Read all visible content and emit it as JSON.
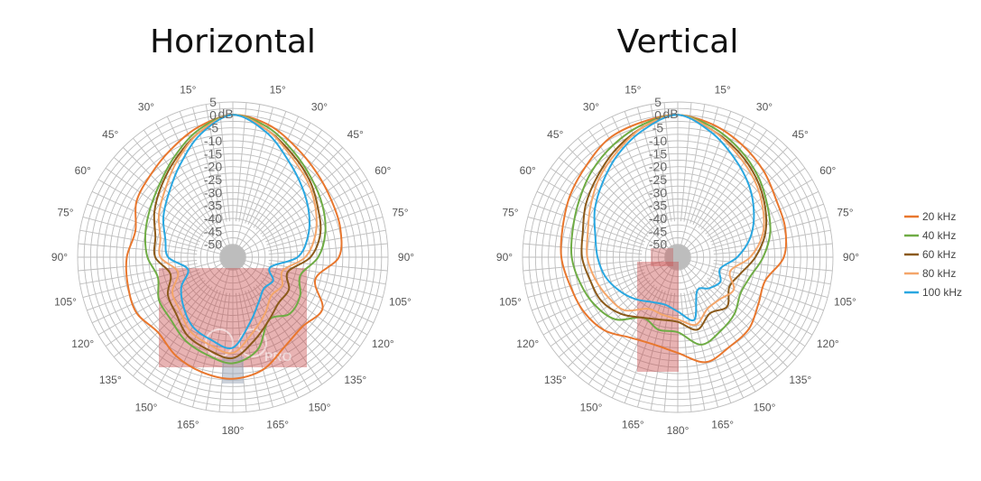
{
  "chart_data": [
    {
      "type": "polar-line",
      "title": "Horizontal",
      "radial_unit": "dB",
      "radial_ticks": [
        5,
        0,
        -5,
        -10,
        -15,
        -20,
        -25,
        -30,
        -35,
        -40,
        -45,
        -50
      ],
      "radial_range": [
        -55,
        5
      ],
      "angular_ticks": [
        "15°",
        "30°",
        "45°",
        "60°",
        "75°",
        "90°",
        "105°",
        "120°",
        "135°",
        "150°",
        "165°",
        "180°"
      ],
      "angles_deg": [
        0,
        15,
        30,
        45,
        60,
        75,
        90,
        105,
        120,
        135,
        150,
        165,
        180,
        195,
        210,
        225,
        240,
        255,
        270,
        285,
        300,
        315,
        330,
        345
      ],
      "series": [
        {
          "name": "20 kHz",
          "color": "#e8772e",
          "values": [
            0,
            -2,
            -6,
            -9,
            -11,
            -12,
            -14,
            -22,
            -15,
            -17,
            -15,
            -10,
            -8,
            -9,
            -11,
            -14,
            -12,
            -13,
            -14,
            -16,
            -12,
            -10,
            -7,
            -3
          ]
        },
        {
          "name": "40 kHz",
          "color": "#6fac45",
          "values": [
            0,
            -3,
            -8,
            -12,
            -15,
            -18,
            -22,
            -28,
            -25,
            -24,
            -27,
            -18,
            -14,
            -16,
            -18,
            -21,
            -22,
            -25,
            -22,
            -20,
            -18,
            -15,
            -10,
            -4
          ]
        },
        {
          "name": "60 kHz",
          "color": "#8b5a1a",
          "values": [
            0,
            -4,
            -9,
            -13,
            -17,
            -20,
            -25,
            -33,
            -30,
            -30,
            -27,
            -22,
            -16,
            -18,
            -20,
            -24,
            -26,
            -30,
            -25,
            -24,
            -20,
            -16,
            -11,
            -5
          ]
        },
        {
          "name": "80 kHz",
          "color": "#f4a66a",
          "values": [
            0,
            -4,
            -10,
            -14,
            -18,
            -22,
            -27,
            -35,
            -33,
            -34,
            -30,
            -25,
            -18,
            -20,
            -22,
            -26,
            -28,
            -33,
            -27,
            -26,
            -22,
            -18,
            -12,
            -5
          ]
        },
        {
          "name": "100 kHz",
          "color": "#2aa7e0",
          "values": [
            0,
            -5,
            -12,
            -17,
            -21,
            -25,
            -30,
            -40,
            -37,
            -38,
            -35,
            -29,
            -20,
            -22,
            -24,
            -28,
            -32,
            -37,
            -30,
            -28,
            -24,
            -20,
            -14,
            -6
          ]
        }
      ]
    },
    {
      "type": "polar-line",
      "title": "Vertical",
      "radial_unit": "dB",
      "radial_ticks": [
        5,
        0,
        -5,
        -10,
        -15,
        -20,
        -25,
        -30,
        -35,
        -40,
        -45,
        -50
      ],
      "radial_range": [
        -55,
        5
      ],
      "angular_ticks": [
        "15°",
        "30°",
        "45°",
        "60°",
        "75°",
        "90°",
        "105°",
        "120°",
        "135°",
        "150°",
        "165°",
        "180°"
      ],
      "angles_deg": [
        0,
        15,
        30,
        45,
        60,
        75,
        90,
        105,
        120,
        135,
        150,
        165,
        180,
        195,
        210,
        225,
        240,
        255,
        270,
        285,
        300,
        315,
        330,
        345
      ],
      "series": [
        {
          "name": "20 kHz",
          "color": "#e8772e",
          "values": [
            0,
            -2,
            -5,
            -8,
            -11,
            -12,
            -14,
            -20,
            -19,
            -16,
            -15,
            -13,
            -18,
            -20,
            -19,
            -15,
            -13,
            -12,
            -10,
            -9,
            -7,
            -5,
            -2,
            -1
          ]
        },
        {
          "name": "40 kHz",
          "color": "#6fac45",
          "values": [
            0,
            -3,
            -7,
            -11,
            -15,
            -18,
            -22,
            -26,
            -27,
            -24,
            -22,
            -20,
            -26,
            -26,
            -28,
            -21,
            -18,
            -16,
            -14,
            -13,
            -11,
            -8,
            -5,
            -2
          ]
        },
        {
          "name": "60 kHz",
          "color": "#8b5a1a",
          "values": [
            0,
            -4,
            -8,
            -12,
            -16,
            -20,
            -25,
            -30,
            -32,
            -28,
            -30,
            -26,
            -30,
            -30,
            -28,
            -24,
            -21,
            -20,
            -18,
            -17,
            -14,
            -11,
            -7,
            -3
          ]
        },
        {
          "name": "80 kHz",
          "color": "#f4a66a",
          "values": [
            0,
            -4,
            -9,
            -13,
            -17,
            -21,
            -27,
            -34,
            -30,
            -32,
            -32,
            -28,
            -31,
            -32,
            -32,
            -26,
            -24,
            -22,
            -20,
            -19,
            -16,
            -12,
            -8,
            -3
          ]
        },
        {
          "name": "100 kHz",
          "color": "#2aa7e0",
          "values": [
            0,
            -5,
            -11,
            -16,
            -21,
            -26,
            -32,
            -38,
            -36,
            -38,
            -40,
            -30,
            -34,
            -36,
            -35,
            -32,
            -29,
            -26,
            -24,
            -22,
            -18,
            -14,
            -9,
            -4
          ]
        }
      ]
    }
  ],
  "legend": {
    "placement": "right",
    "items": [
      {
        "label": "20 kHz",
        "color": "#e8772e"
      },
      {
        "label": "40 kHz",
        "color": "#6fac45"
      },
      {
        "label": "60 kHz",
        "color": "#8b5a1a"
      },
      {
        "label": "80 kHz",
        "color": "#f4a66a"
      },
      {
        "label": "100 kHz",
        "color": "#2aa7e0"
      }
    ]
  },
  "overlay_color": "#c84a4a",
  "grid_color": "#bdbdbd",
  "watermark_icon": "pro-watermark-logo",
  "watermark_text": "PRO"
}
